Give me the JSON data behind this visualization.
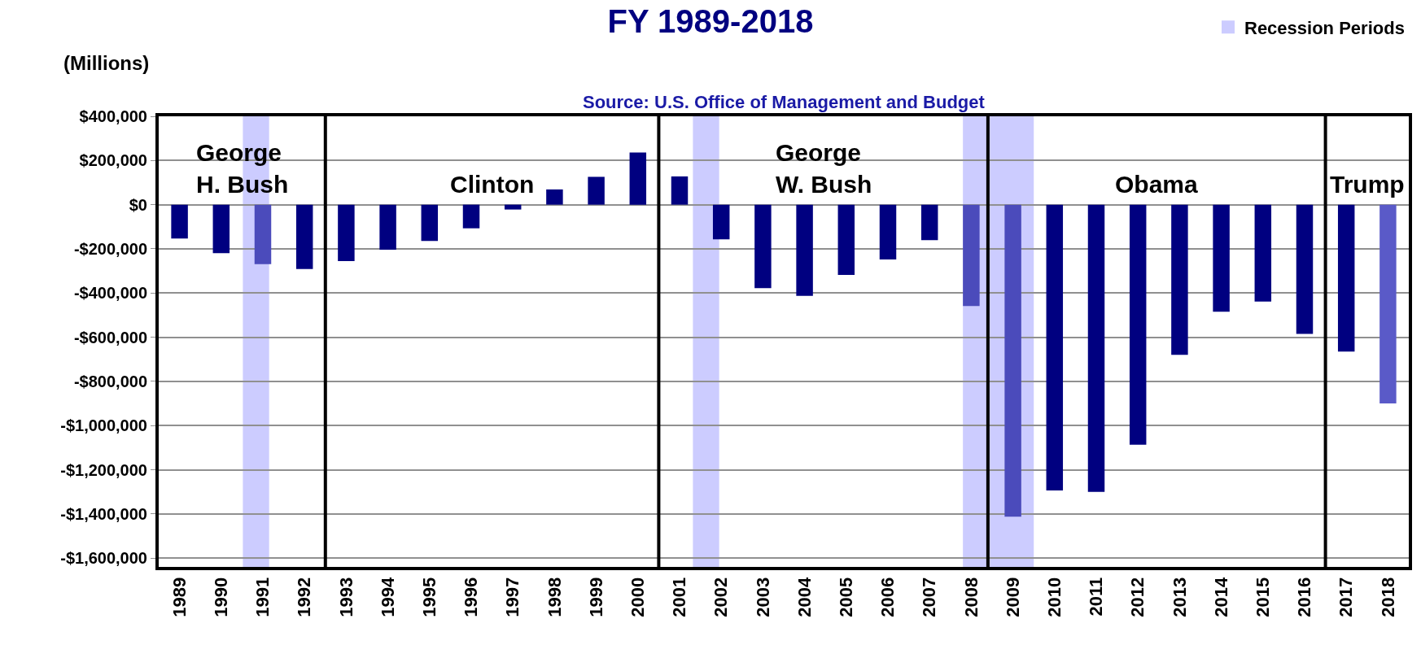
{
  "chart_data": {
    "type": "bar",
    "title": "FY 1989-2018",
    "subtitle": "Source: U.S. Office of Management and Budget",
    "ylabel": "(Millions)",
    "x": [
      1989,
      1990,
      1991,
      1992,
      1993,
      1994,
      1995,
      1996,
      1997,
      1998,
      1999,
      2000,
      2001,
      2002,
      2003,
      2004,
      2005,
      2006,
      2007,
      2008,
      2009,
      2010,
      2011,
      2012,
      2013,
      2014,
      2015,
      2016,
      2017,
      2018
    ],
    "values": [
      -153000,
      -220000,
      -269000,
      -291000,
      -255000,
      -204000,
      -164000,
      -107000,
      -22000,
      69000,
      126000,
      236000,
      128000,
      -157000,
      -378000,
      -413000,
      -318000,
      -248000,
      -161000,
      -459000,
      -1413000,
      -1294000,
      -1300000,
      -1087000,
      -680000,
      -485000,
      -439000,
      -585000,
      -665000,
      -900000
    ],
    "colors": [
      "#000080",
      "#000080",
      "#4b4bbb",
      "#000080",
      "#000080",
      "#000080",
      "#000080",
      "#000080",
      "#000080",
      "#000080",
      "#000080",
      "#000080",
      "#000080",
      "#000080",
      "#000080",
      "#000080",
      "#000080",
      "#000080",
      "#000080",
      "#4b4bbb",
      "#4b4bbb",
      "#000080",
      "#000080",
      "#000080",
      "#000080",
      "#000080",
      "#000080",
      "#000080",
      "#000080",
      "#5a5ac8"
    ],
    "xlim": [
      1988.5,
      2018.5
    ],
    "xticks": [
      1989,
      1990,
      1991,
      1992,
      1993,
      1994,
      1995,
      1996,
      1997,
      1998,
      1999,
      2000,
      2001,
      2002,
      2003,
      2004,
      2005,
      2006,
      2007,
      2008,
      2009,
      2010,
      2011,
      2012,
      2013,
      2014,
      2015,
      2016,
      2017,
      2018
    ],
    "ylim": [
      -1640000,
      400000
    ],
    "yticks": [
      {
        "value": 400000,
        "label": "$400,000"
      },
      {
        "value": 200000,
        "label": "$200,000"
      },
      {
        "value": 0,
        "label": "$0"
      },
      {
        "value": -200000,
        "label": "-$200,000"
      },
      {
        "value": -400000,
        "label": "-$400,000"
      },
      {
        "value": -600000,
        "label": "-$600,000"
      },
      {
        "value": -800000,
        "label": "-$800,000"
      },
      {
        "value": -1000000,
        "label": "-$1,000,000"
      },
      {
        "value": -1200000,
        "label": "-$1,200,000"
      },
      {
        "value": -1400000,
        "label": "-$1,400,000"
      },
      {
        "value": -1600000,
        "label": "-$1,600,000"
      }
    ],
    "bands": [
      {
        "axis": "x",
        "from": 1990.52,
        "to": 1991.15,
        "label": "Recession Periods",
        "color": "#ccccff"
      },
      {
        "axis": "x",
        "from": 2001.32,
        "to": 2001.95,
        "color": "#ccccff"
      },
      {
        "axis": "x",
        "from": 2007.8,
        "to": 2009.5,
        "color": "#ccccff"
      }
    ],
    "ref_lines": [
      {
        "axis": "x",
        "value": 1992.5,
        "color": "#000000"
      },
      {
        "axis": "x",
        "value": 2000.5,
        "color": "#000000"
      },
      {
        "axis": "x",
        "value": 2008.4,
        "color": "#000000"
      },
      {
        "axis": "x",
        "value": 2016.5,
        "color": "#000000"
      }
    ],
    "annotations": [
      "George\nH. Bush",
      "Clinton",
      "George\nW. Bush",
      "Obama",
      "Trump"
    ],
    "grid": "y",
    "legend": "top right"
  }
}
